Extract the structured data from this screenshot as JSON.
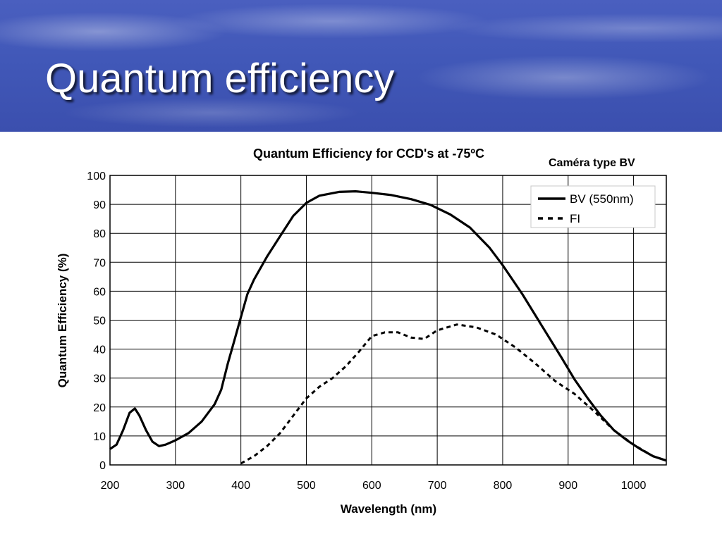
{
  "slide": {
    "title": "Quantum efficiency",
    "annotation": "Caméra type BV"
  },
  "chart_data": {
    "type": "line",
    "title": "Quantum Efficiency for CCD's at -75ºC",
    "xlabel": "Wavelength (nm)",
    "ylabel": "Quantum Efficiency (%)",
    "xlim": [
      200,
      1050
    ],
    "ylim": [
      0,
      100
    ],
    "x_ticks": [
      200,
      300,
      400,
      500,
      600,
      700,
      800,
      900,
      1000
    ],
    "y_ticks": [
      0,
      10,
      20,
      30,
      40,
      50,
      60,
      70,
      80,
      90,
      100
    ],
    "grid": true,
    "legend_position": "top-right",
    "series": [
      {
        "name": "BV (550nm)",
        "style": "solid",
        "color": "#000000",
        "points": [
          [
            200,
            5.5
          ],
          [
            210,
            7
          ],
          [
            220,
            12
          ],
          [
            230,
            18
          ],
          [
            238,
            19.5
          ],
          [
            245,
            17
          ],
          [
            255,
            12
          ],
          [
            265,
            8
          ],
          [
            275,
            6.5
          ],
          [
            285,
            7
          ],
          [
            300,
            8.5
          ],
          [
            320,
            11
          ],
          [
            340,
            15
          ],
          [
            360,
            21
          ],
          [
            370,
            26
          ],
          [
            380,
            35
          ],
          [
            390,
            43
          ],
          [
            400,
            51
          ],
          [
            410,
            59
          ],
          [
            420,
            64
          ],
          [
            440,
            72
          ],
          [
            460,
            79
          ],
          [
            480,
            86
          ],
          [
            500,
            90.5
          ],
          [
            520,
            93
          ],
          [
            550,
            94.3
          ],
          [
            575,
            94.5
          ],
          [
            600,
            94
          ],
          [
            630,
            93.2
          ],
          [
            660,
            91.8
          ],
          [
            690,
            89.8
          ],
          [
            720,
            86.5
          ],
          [
            750,
            82
          ],
          [
            780,
            75
          ],
          [
            800,
            69
          ],
          [
            830,
            59
          ],
          [
            860,
            48
          ],
          [
            890,
            37
          ],
          [
            910,
            29.5
          ],
          [
            930,
            23
          ],
          [
            950,
            17
          ],
          [
            970,
            12
          ],
          [
            990,
            8.5
          ],
          [
            1010,
            5.5
          ],
          [
            1030,
            3
          ],
          [
            1050,
            1.5
          ]
        ]
      },
      {
        "name": "FI",
        "style": "dashed",
        "color": "#000000",
        "points": [
          [
            400,
            0.5
          ],
          [
            420,
            3
          ],
          [
            440,
            6.5
          ],
          [
            460,
            11
          ],
          [
            480,
            17
          ],
          [
            500,
            23
          ],
          [
            520,
            27
          ],
          [
            540,
            30
          ],
          [
            560,
            34
          ],
          [
            580,
            39
          ],
          [
            600,
            44.5
          ],
          [
            620,
            45.8
          ],
          [
            640,
            45.8
          ],
          [
            660,
            44
          ],
          [
            680,
            43.5
          ],
          [
            700,
            46.5
          ],
          [
            730,
            48.5
          ],
          [
            760,
            47.5
          ],
          [
            790,
            45
          ],
          [
            820,
            40.5
          ],
          [
            850,
            35
          ],
          [
            880,
            29
          ],
          [
            910,
            24.5
          ],
          [
            940,
            18.5
          ],
          [
            970,
            12
          ],
          [
            1000,
            7
          ],
          [
            1030,
            3
          ],
          [
            1050,
            1.5
          ]
        ]
      }
    ]
  }
}
